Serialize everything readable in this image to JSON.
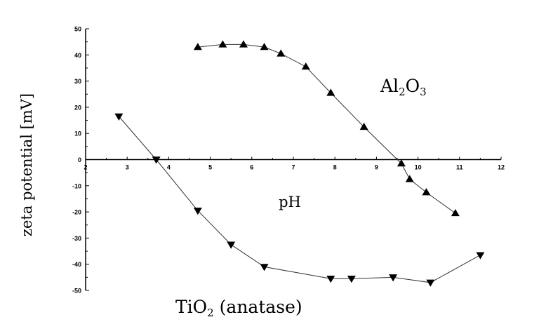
{
  "chart_data": {
    "type": "line",
    "title": "",
    "xlabel": "pH",
    "ylabel": "zeta potential [mV]",
    "xlim": [
      2,
      12
    ],
    "ylim": [
      -50,
      50
    ],
    "x_ticks": [
      "2",
      "3",
      "4",
      "5",
      "6",
      "7",
      "8",
      "9",
      "10",
      "11",
      "12"
    ],
    "y_ticks": [
      "50",
      "40",
      "30",
      "20",
      "10",
      "0",
      "-10",
      "-20",
      "-30",
      "-40",
      "-50"
    ],
    "series": [
      {
        "name": "Al2O3",
        "label_parts": [
          {
            "text": "Al",
            "sub": false
          },
          {
            "text": "2",
            "sub": true
          },
          {
            "text": "O",
            "sub": false
          },
          {
            "text": "3",
            "sub": true
          }
        ],
        "marker": "triangle-up",
        "x": [
          4.7,
          5.3,
          5.8,
          6.3,
          6.7,
          7.3,
          7.9,
          8.7,
          9.6,
          9.8,
          10.2,
          10.9
        ],
        "y": [
          43,
          44,
          44,
          43,
          40.5,
          35.5,
          25.5,
          12.5,
          -1.5,
          -7.5,
          -12.5,
          -20.5
        ]
      },
      {
        "name": "TiO2 (anatase)",
        "label_parts": [
          {
            "text": "TiO",
            "sub": false
          },
          {
            "text": "2",
            "sub": true
          },
          {
            "text": " (anatase)",
            "sub": false
          }
        ],
        "marker": "triangle-down",
        "x": [
          2.8,
          3.7,
          4.7,
          5.5,
          6.3,
          7.9,
          8.4,
          9.4,
          10.3,
          11.5
        ],
        "y": [
          16.5,
          0,
          -19.5,
          -32.5,
          -41,
          -45.5,
          -45.5,
          -45,
          -47,
          -36.5
        ]
      }
    ],
    "grid": false,
    "legend": "none"
  }
}
